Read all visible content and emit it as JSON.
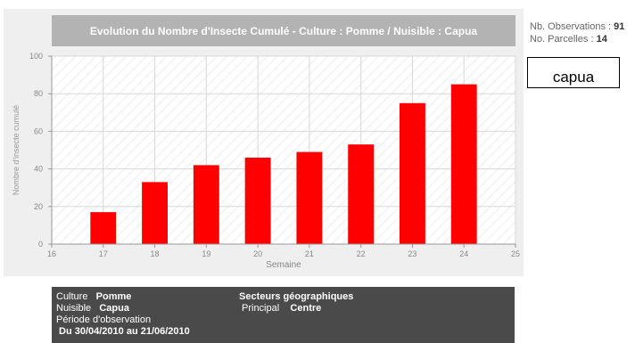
{
  "title": "Evolution du Nombre d'Insecte Cumulé - Culture : Pomme / Nuisible : Capua",
  "stats": {
    "observations_label": "Nb. Observations :",
    "observations_value": "91",
    "parcelles_label": "No. Parcelles :",
    "parcelles_value": "14"
  },
  "legend": {
    "label": "capua"
  },
  "info": {
    "culture_label": "Culture",
    "culture_value": "Pomme",
    "nuisible_label": "Nuisible",
    "nuisible_value": "Capua",
    "periode_label": "Période d'observation",
    "periode_value": "Du 30/04/2010 au 21/06/2010",
    "secteurs_label": "Secteurs géographiques",
    "principal_label": "Principal",
    "principal_value": "Centre"
  },
  "colors": {
    "bar": "#ff0000",
    "panel": "#efefef",
    "title_bg": "#b3b3b3",
    "info_bg": "#4a4a4a"
  },
  "chart_data": {
    "type": "bar",
    "title": "Evolution du Nombre d'Insecte Cumulé - Culture : Pomme / Nuisible : Capua",
    "xlabel": "Semaine",
    "ylabel": "Nombre d'insecte cumulé",
    "x": [
      17,
      18,
      19,
      20,
      21,
      22,
      23,
      24
    ],
    "series": [
      {
        "name": "capua",
        "values": [
          17,
          33,
          42,
          46,
          49,
          53,
          75,
          85
        ]
      }
    ],
    "xlim": [
      16,
      25
    ],
    "ylim": [
      0,
      100
    ],
    "xticks": [
      16,
      17,
      18,
      19,
      20,
      21,
      22,
      23,
      24,
      25
    ],
    "yticks": [
      0,
      20,
      40,
      60,
      80,
      100
    ],
    "grid": true,
    "legend_position": "right"
  }
}
